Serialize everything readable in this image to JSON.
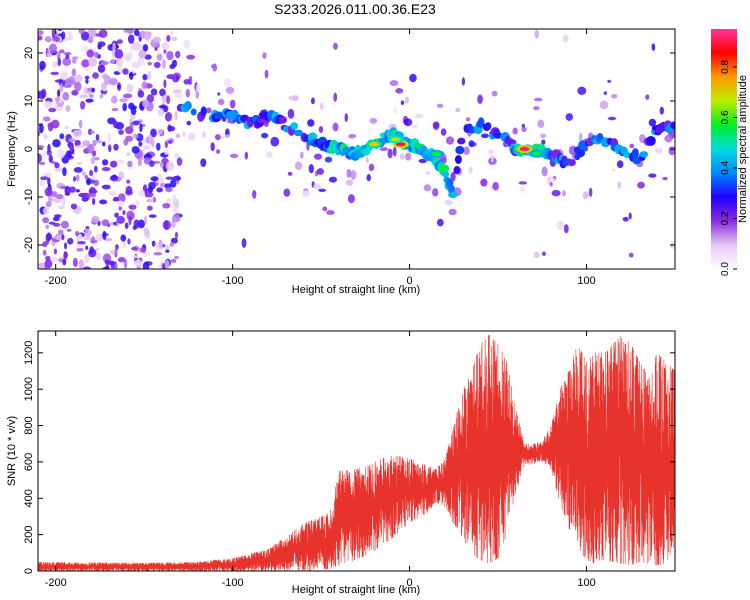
{
  "figure_title": "S233.2026.011.00.36.E23",
  "chart_data": [
    {
      "type": "heatmap",
      "title": "S233.2026.011.00.36.E23",
      "xlabel": "Height of straight line (km)",
      "ylabel": "Frequency (Hz)",
      "xlim": [
        -210,
        150
      ],
      "ylim": [
        -25,
        25
      ],
      "xticks": [
        -200,
        -100,
        0,
        100
      ],
      "yticks": [
        -20,
        -10,
        0,
        10,
        20
      ],
      "colorbar": {
        "label": "Normalized spectral amplitude",
        "range": [
          0,
          0.95
        ],
        "ticks": [
          0.0,
          0.2,
          0.4,
          0.6,
          0.8
        ],
        "tick_labels": [
          "0.0",
          "0.2",
          "0.4",
          "0.6",
          "0.8"
        ],
        "colormap": [
          "#ffffff",
          "#e6c8f5",
          "#8a2be2",
          "#2200ff",
          "#0088ff",
          "#00dddd",
          "#00ee22",
          "#bbee00",
          "#ff9900",
          "#ff0000",
          "#ff3399"
        ]
      },
      "ridge": {
        "x": [
          -130,
          -115,
          -100,
          -90,
          -80,
          -70,
          -60,
          -50,
          -40,
          -30,
          -20,
          -15,
          -10,
          -5,
          0,
          5,
          10,
          15,
          20,
          25,
          30,
          40,
          50,
          60,
          70,
          80,
          90,
          100,
          110,
          120,
          130,
          140,
          150
        ],
        "y": [
          9,
          7,
          7,
          5,
          7,
          5,
          3,
          1,
          0,
          -1,
          1,
          2,
          3,
          2,
          1,
          0,
          -1,
          -2,
          -5,
          -10,
          4,
          5,
          3,
          0,
          0,
          -1,
          -3,
          1,
          2,
          0,
          -2,
          4,
          5
        ]
      },
      "peaks": [
        {
          "x": -5,
          "y": 1,
          "amp": 0.9
        },
        {
          "x": 65,
          "y": 0,
          "amp": 0.92
        },
        {
          "x": -20,
          "y": 1,
          "amp": 0.7
        },
        {
          "x": -8,
          "y": 2,
          "amp": 0.65
        },
        {
          "x": 72,
          "y": -1,
          "amp": 0.55
        },
        {
          "x": 15,
          "y": -1,
          "amp": 0.55
        }
      ]
    },
    {
      "type": "line",
      "title": "",
      "xlabel": "Height of straight line (km)",
      "ylabel": "SNR (10 * v/v)",
      "xlim": [
        -210,
        150
      ],
      "ylim": [
        0,
        1320
      ],
      "xticks": [
        -200,
        -100,
        0,
        100
      ],
      "yticks": [
        0,
        200,
        400,
        600,
        800,
        1000,
        1200
      ],
      "series": [
        {
          "color": "#e8322c",
          "envelope": {
            "x": [
              -210,
              -150,
              -120,
              -100,
              -80,
              -60,
              -45,
              -40,
              -30,
              -20,
              -10,
              0,
              10,
              15,
              20,
              25,
              30,
              35,
              40,
              45,
              50,
              55,
              60,
              65,
              70,
              75,
              80,
              85,
              90,
              95,
              100,
              105,
              110,
              115,
              120,
              125,
              130,
              135,
              140,
              145,
              150
            ],
            "low": [
              0,
              0,
              0,
              0,
              0,
              0,
              10,
              30,
              60,
              110,
              180,
              260,
              320,
              380,
              350,
              260,
              180,
              100,
              60,
              40,
              70,
              200,
              430,
              580,
              590,
              600,
              560,
              370,
              230,
              120,
              60,
              40,
              60,
              50,
              40,
              30,
              50,
              40,
              30,
              40,
              60
            ],
            "high": [
              50,
              45,
              50,
              70,
              120,
              260,
              320,
              550,
              560,
              600,
              640,
              620,
              580,
              560,
              620,
              800,
              1000,
              1100,
              1250,
              1300,
              1250,
              1150,
              900,
              700,
              700,
              720,
              800,
              1000,
              1100,
              1250,
              1150,
              1200,
              1200,
              1250,
              1300,
              1250,
              1150,
              1100,
              1200,
              1150,
              1100
            ]
          }
        }
      ]
    }
  ]
}
